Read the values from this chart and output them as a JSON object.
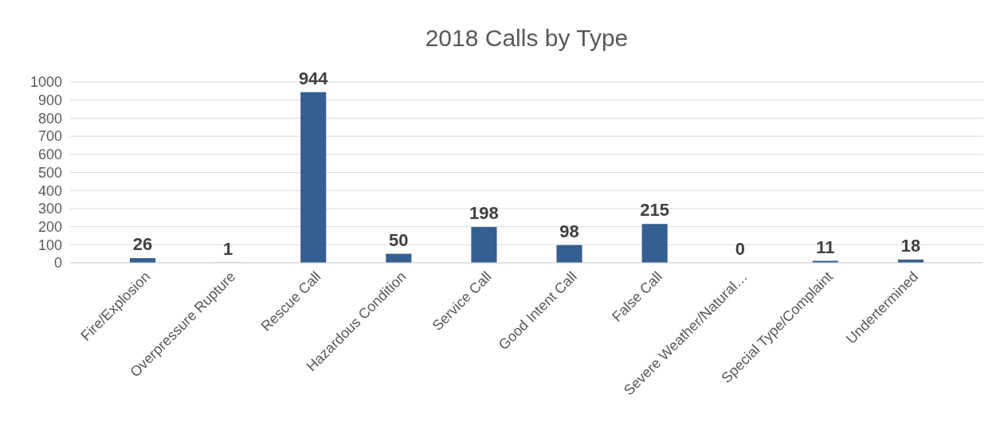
{
  "chart_data": {
    "type": "bar",
    "title": "2018 Calls by Type",
    "categories": [
      "Fire/Explosion",
      "Overpressure Rupture",
      "Rescue Call",
      "Hazardous Condition",
      "Service Call",
      "Good Intent Call",
      "False Call",
      "Severe Weather/Natural…",
      "Special Type/Complaint",
      "Undertermined"
    ],
    "values": [
      26,
      1,
      944,
      50,
      198,
      98,
      215,
      0,
      11,
      18
    ],
    "color": "#355f91",
    "ylim": [
      0,
      1000
    ],
    "yticks": [
      0,
      100,
      200,
      300,
      400,
      500,
      600,
      700,
      800,
      900,
      1000
    ],
    "grid": "y",
    "data_labels": true
  }
}
